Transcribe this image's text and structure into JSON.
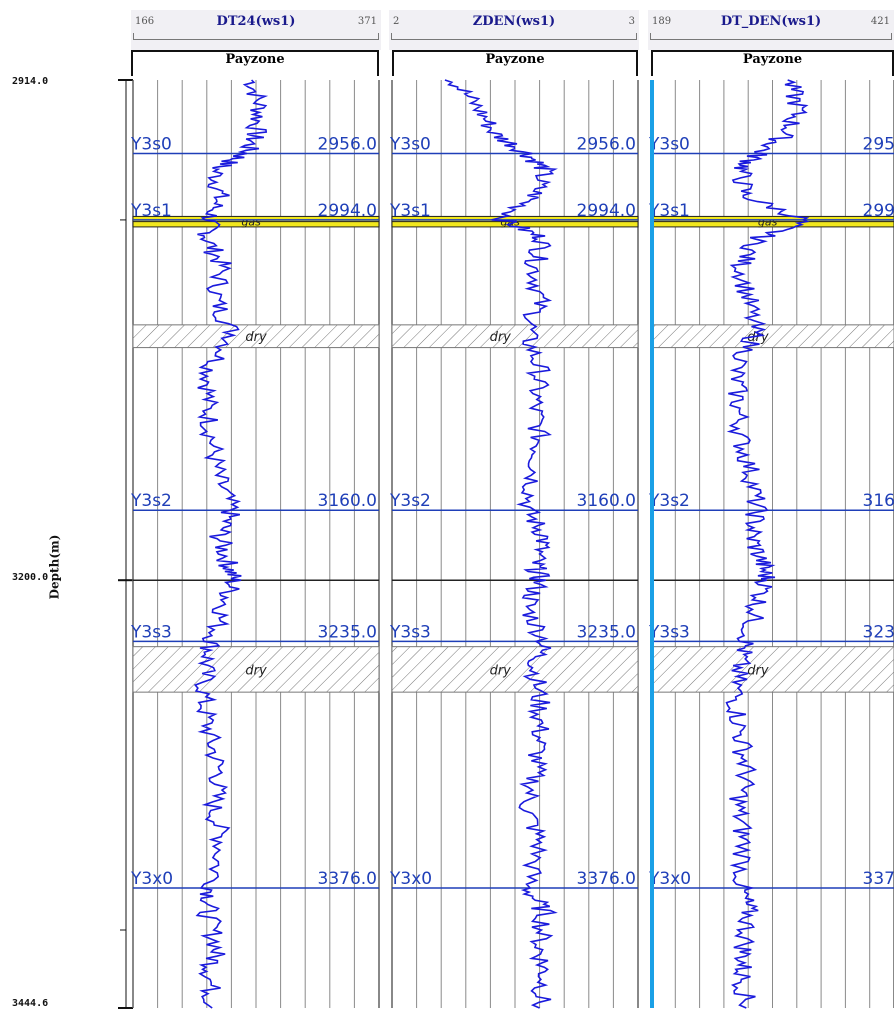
{
  "ylabel": "Depth(m)",
  "depth_ticks": [
    "2914.0",
    "3200.0",
    "3444.6"
  ],
  "chart_data": {
    "type": "line",
    "ylabel": "Depth(m)",
    "ylim": [
      2914.0,
      3444.6
    ],
    "y_ticks": [
      2914.0,
      3200.0,
      3444.6
    ],
    "grid": true,
    "tracks": [
      {
        "name": "DT24(ws1)",
        "min_label": "166",
        "max_label": "371",
        "xlim": [
          166,
          371
        ],
        "zone_label": "Payzone"
      },
      {
        "name": "ZDEN(ws1)",
        "min_label": "2",
        "max_label": "3",
        "xlim": [
          2,
          3
        ],
        "zone_label": "Payzone"
      },
      {
        "name": "DT_DEN(ws1)",
        "min_label": "189",
        "max_label": "421",
        "xlim": [
          189,
          421
        ],
        "zone_label": "Payzone"
      }
    ],
    "formation_tops": [
      {
        "name": "Y3s0",
        "depth": 2956.0,
        "label": "2956.0"
      },
      {
        "name": "Y3s1",
        "depth": 2994.0,
        "label": "2994.0"
      },
      {
        "name": "Y3s2",
        "depth": 3160.0,
        "label": "3160.0"
      },
      {
        "name": "Y3s3",
        "depth": 3235.0,
        "label": "3235.0"
      },
      {
        "name": "Y3x0",
        "depth": 3376.0,
        "label": "3376.0"
      }
    ],
    "zones": [
      {
        "type": "gas",
        "label": "gas",
        "top": 2992.0,
        "bottom": 2998.0,
        "color": "#f2e81d"
      },
      {
        "type": "dry",
        "label": "dry",
        "top": 3054.0,
        "bottom": 3067.0
      },
      {
        "type": "dry",
        "label": "dry",
        "top": 3238.0,
        "bottom": 3264.0
      }
    ],
    "curves": [
      {
        "track": 0,
        "depth": [
          2914,
          2930,
          2945,
          2956,
          2965,
          2980,
          2994,
          3005,
          3020,
          3040,
          3060,
          3080,
          3100,
          3120,
          3140,
          3160,
          3175,
          3190,
          3200,
          3215,
          3235,
          3250,
          3270,
          3290,
          3310,
          3330,
          3350,
          3376,
          3390,
          3410,
          3425,
          3444.6
        ],
        "values": [
          265,
          272,
          268,
          260,
          235,
          238,
          230,
          228,
          240,
          235,
          250,
          230,
          228,
          232,
          236,
          248,
          238,
          245,
          250,
          242,
          232,
          226,
          225,
          230,
          238,
          233,
          240,
          232,
          228,
          236,
          230,
          232
        ]
      },
      {
        "track": 1,
        "depth": [
          2914,
          2930,
          2945,
          2956,
          2965,
          2980,
          2994,
          3005,
          3020,
          3040,
          3060,
          3080,
          3100,
          3120,
          3140,
          3160,
          3175,
          3190,
          3200,
          3215,
          3235,
          3250,
          3270,
          3290,
          3310,
          3330,
          3350,
          3376,
          3390,
          3410,
          3425,
          3444.6
        ],
        "values": [
          2.25,
          2.35,
          2.42,
          2.55,
          2.62,
          2.58,
          2.45,
          2.62,
          2.58,
          2.6,
          2.55,
          2.6,
          2.58,
          2.6,
          2.58,
          2.55,
          2.62,
          2.58,
          2.6,
          2.55,
          2.62,
          2.58,
          2.6,
          2.6,
          2.58,
          2.55,
          2.6,
          2.55,
          2.62,
          2.6,
          2.62,
          2.6
        ]
      },
      {
        "track": 2,
        "depth": [
          2914,
          2930,
          2945,
          2956,
          2965,
          2980,
          2994,
          3005,
          3020,
          3040,
          3060,
          3080,
          3100,
          3120,
          3140,
          3160,
          3175,
          3190,
          3200,
          3215,
          3235,
          3250,
          3270,
          3290,
          3310,
          3330,
          3350,
          3376,
          3390,
          3410,
          3425,
          3444.6
        ],
        "values": [
          320,
          330,
          318,
          292,
          275,
          278,
          335,
          290,
          275,
          282,
          288,
          270,
          272,
          275,
          285,
          290,
          285,
          295,
          300,
          290,
          280,
          272,
          270,
          275,
          280,
          272,
          278,
          275,
          282,
          278,
          276,
          280
        ]
      }
    ],
    "colors": {
      "curve": "#1a1adc",
      "gas_fill": "#f2e81d",
      "top_label": "#1f3fb8",
      "accent_edge": "#1aa0e6",
      "grid": "#8a8a8a"
    }
  }
}
